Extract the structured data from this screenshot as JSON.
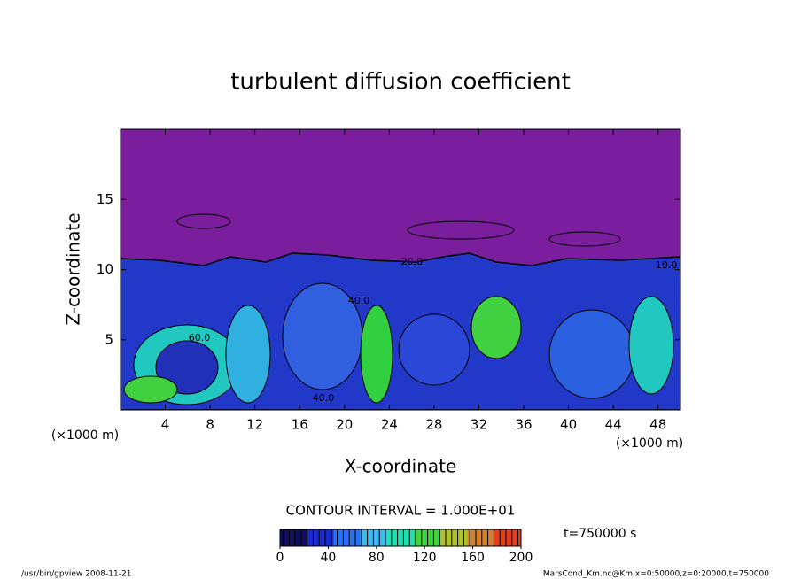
{
  "chart_data": {
    "type": "contour",
    "title": "turbulent diffusion coefficient",
    "xlabel": "X-coordinate",
    "ylabel": "Z-coordinate",
    "x_unit": "(×1000 m)",
    "y_unit": "(×1000 m)",
    "xlim": [
      0,
      50
    ],
    "xticks": [
      4,
      8,
      12,
      16,
      20,
      24,
      28,
      32,
      36,
      40,
      44,
      48
    ],
    "ylim": [
      0,
      20
    ],
    "yticks": [
      5,
      10,
      15
    ],
    "contour_labels": [
      "20.0",
      "10.0",
      "40.0",
      "60.0",
      "40.0"
    ],
    "contour_interval": "CONTOUR INTERVAL = 1.000E+01",
    "time_label": "t=750000 s",
    "colorbar": {
      "lim": [
        0,
        200
      ],
      "ticks": [
        0,
        40,
        80,
        120,
        160,
        200
      ],
      "colors": [
        "#10105a",
        "#1a2ad0",
        "#2a70f0",
        "#40b8f0",
        "#20e0b0",
        "#40d040",
        "#b0c030",
        "#d08030",
        "#e04020"
      ]
    },
    "footer_left": "/usr/bin/gpview   2008-11-21",
    "footer_right": "MarsCond_Km.nc@Km,x=0:50000,z=0:20000,t=750000"
  }
}
